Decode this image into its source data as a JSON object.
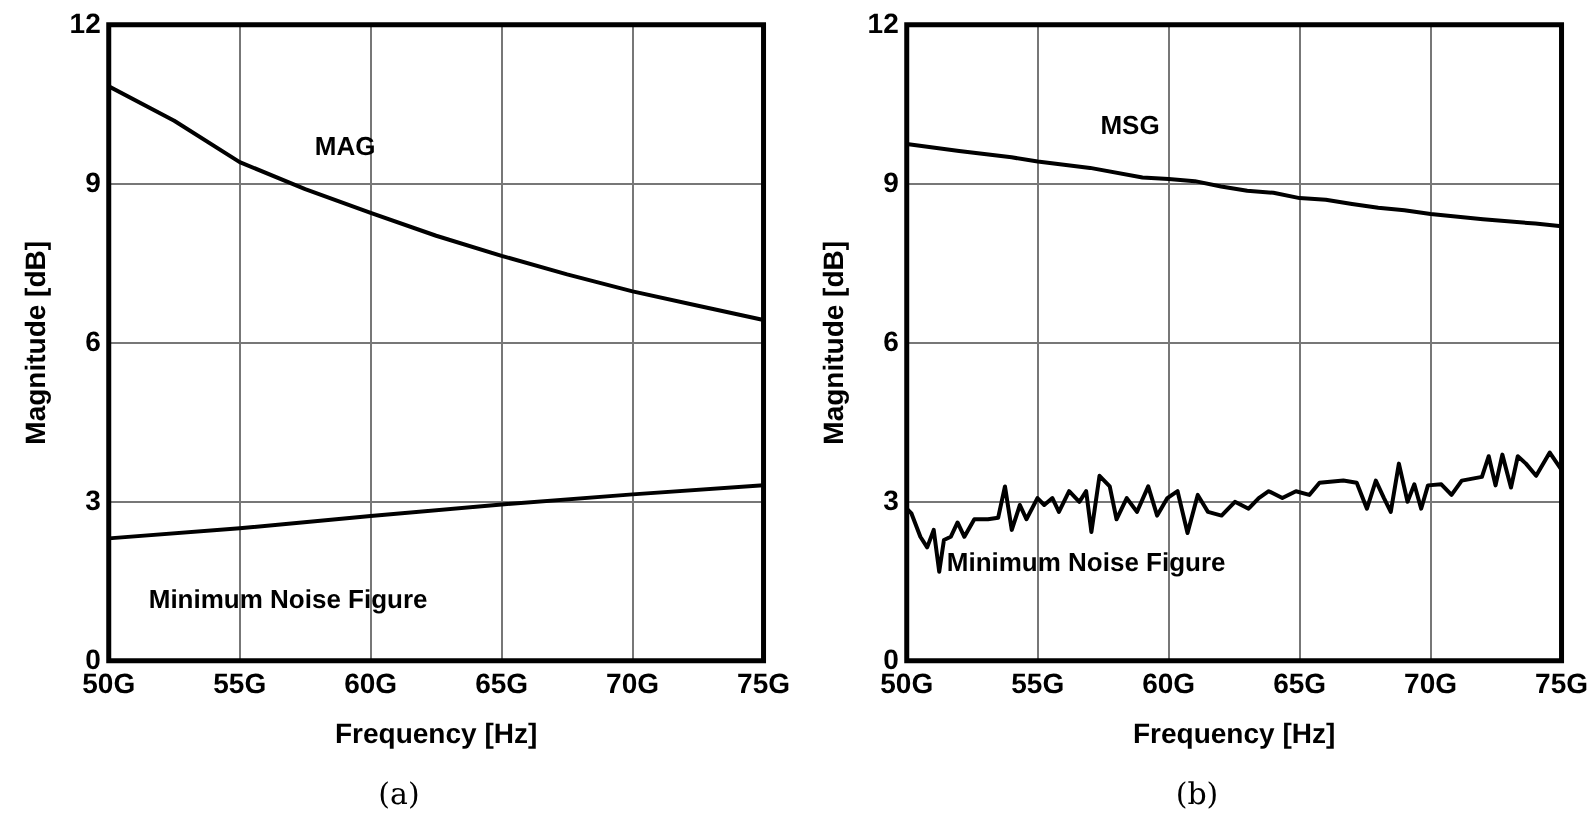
{
  "chart_data": [
    {
      "type": "line",
      "xlabel": "Frequency [Hz]",
      "ylabel": "Magnitude [dB]",
      "annotations": [
        "(a)"
      ],
      "xlim": [
        50,
        75
      ],
      "ylim": [
        0,
        12
      ],
      "xticks": [
        {
          "value": 50,
          "label": "50G"
        },
        {
          "value": 55,
          "label": "55G"
        },
        {
          "value": 60,
          "label": "60G"
        },
        {
          "value": 65,
          "label": "65G"
        },
        {
          "value": 70,
          "label": "70G"
        },
        {
          "value": 75,
          "label": "75G"
        }
      ],
      "yticks": [
        0,
        3,
        6,
        9,
        12
      ],
      "grid": true,
      "legend": false,
      "marker": "none",
      "line_style": "solid",
      "series": [
        {
          "name": "MAG",
          "color": "#000000",
          "x": [
            50,
            52.5,
            55,
            57.5,
            60,
            62.5,
            65,
            67.5,
            70,
            72.5,
            75
          ],
          "values": [
            10.84,
            10.19,
            9.41,
            8.9,
            8.45,
            8.02,
            7.64,
            7.29,
            6.97,
            6.7,
            6.43
          ]
        },
        {
          "name": "Minimum Noise Figure",
          "color": "#000000",
          "x": [
            50,
            55,
            60,
            65,
            70,
            75
          ],
          "values": [
            2.31,
            2.5,
            2.73,
            2.95,
            3.14,
            3.31
          ]
        }
      ]
    },
    {
      "type": "line",
      "xlabel": "Frequency [Hz]",
      "ylabel": "Magnitude [dB]",
      "annotations": [
        "(b)"
      ],
      "xlim": [
        50,
        75
      ],
      "ylim": [
        0,
        12
      ],
      "xticks": [
        {
          "value": 50,
          "label": "50G"
        },
        {
          "value": 55,
          "label": "55G"
        },
        {
          "value": 60,
          "label": "60G"
        },
        {
          "value": 65,
          "label": "65G"
        },
        {
          "value": 70,
          "label": "70G"
        },
        {
          "value": 75,
          "label": "75G"
        }
      ],
      "yticks": [
        0,
        3,
        6,
        9,
        12
      ],
      "grid": true,
      "legend": false,
      "marker": "none",
      "line_style": "solid",
      "series": [
        {
          "name": "MSG",
          "color": "#000000",
          "x": [
            50,
            52,
            54,
            55,
            57,
            59,
            60,
            61,
            62,
            63,
            64,
            65,
            66,
            67,
            68,
            69,
            70,
            72,
            74,
            75
          ],
          "values": [
            9.75,
            9.62,
            9.5,
            9.42,
            9.3,
            9.12,
            9.09,
            9.05,
            8.95,
            8.87,
            8.83,
            8.73,
            8.7,
            8.62,
            8.55,
            8.5,
            8.43,
            8.33,
            8.25,
            8.2
          ]
        },
        {
          "name": "Minimum Noise Figure",
          "color": "#000000",
          "x": [
            50,
            50.18,
            50.52,
            50.78,
            51.03,
            51.24,
            51.42,
            51.68,
            51.94,
            52.2,
            52.58,
            53.1,
            53.49,
            53.75,
            54.01,
            54.32,
            54.57,
            54.99,
            55.25,
            55.56,
            55.81,
            56.2,
            56.59,
            56.85,
            57.05,
            57.36,
            57.75,
            58.01,
            58.4,
            58.79,
            59.22,
            59.56,
            59.95,
            60.34,
            60.72,
            61.11,
            61.5,
            62.02,
            62.53,
            63.05,
            63.44,
            63.82,
            64.34,
            64.86,
            65.37,
            65.76,
            66.67,
            67.18,
            67.57,
            67.91,
            68.22,
            68.48,
            68.79,
            69.12,
            69.38,
            69.64,
            69.9,
            70.41,
            70.8,
            71.19,
            71.96,
            72.22,
            72.48,
            72.74,
            73.07,
            73.33,
            73.64,
            74.03,
            74.55,
            75
          ],
          "values": [
            2.87,
            2.78,
            2.34,
            2.14,
            2.47,
            1.68,
            2.28,
            2.34,
            2.61,
            2.34,
            2.67,
            2.67,
            2.7,
            3.29,
            2.47,
            2.94,
            2.67,
            3.07,
            2.94,
            3.07,
            2.81,
            3.2,
            3.0,
            3.2,
            2.43,
            3.49,
            3.29,
            2.67,
            3.07,
            2.81,
            3.29,
            2.74,
            3.07,
            3.2,
            2.41,
            3.13,
            2.81,
            2.74,
            3.0,
            2.87,
            3.07,
            3.2,
            3.07,
            3.2,
            3.13,
            3.36,
            3.4,
            3.36,
            2.87,
            3.4,
            3.07,
            2.81,
            3.72,
            3.0,
            3.33,
            2.87,
            3.31,
            3.33,
            3.13,
            3.4,
            3.47,
            3.86,
            3.31,
            3.89,
            3.27,
            3.86,
            3.72,
            3.49,
            3.93,
            3.6
          ]
        }
      ]
    }
  ]
}
